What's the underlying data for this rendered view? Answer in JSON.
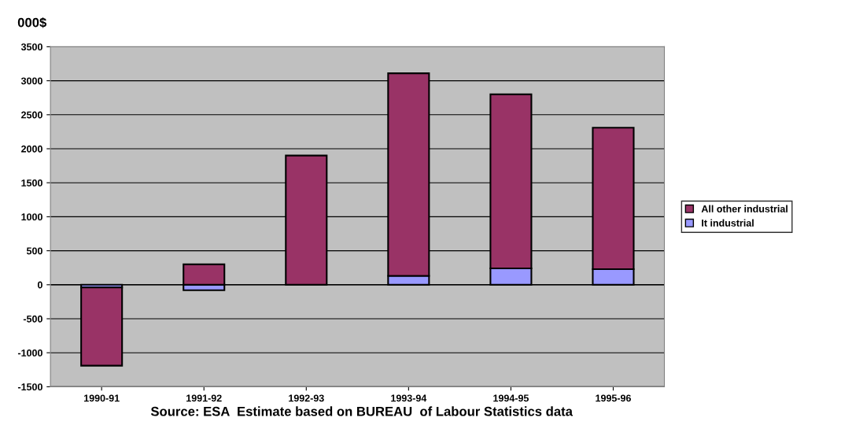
{
  "chart_data": {
    "type": "bar",
    "stacked": true,
    "ylabel": "000$",
    "categories": [
      "1990-91",
      "1991-92",
      "1992-93",
      "1993-94",
      "1994-95",
      "1995-96"
    ],
    "series": [
      {
        "name": "It industrial",
        "color": "#9999ff",
        "values": [
          -40,
          -80,
          null,
          130,
          240,
          230
        ]
      },
      {
        "name": "All other industrial",
        "color": "#993366",
        "values": [
          -1150,
          300,
          1900,
          2980,
          2560,
          2080
        ]
      }
    ],
    "ylim": [
      -1500,
      3500
    ],
    "yticks": [
      -1500,
      -1000,
      -500,
      0,
      500,
      1000,
      1500,
      2000,
      2500,
      3000,
      3500
    ],
    "grid": "y",
    "legend": "right",
    "annotations": [
      "Source: ESA  Estimate based on BUREAU  of Labour Statistics data"
    ]
  }
}
